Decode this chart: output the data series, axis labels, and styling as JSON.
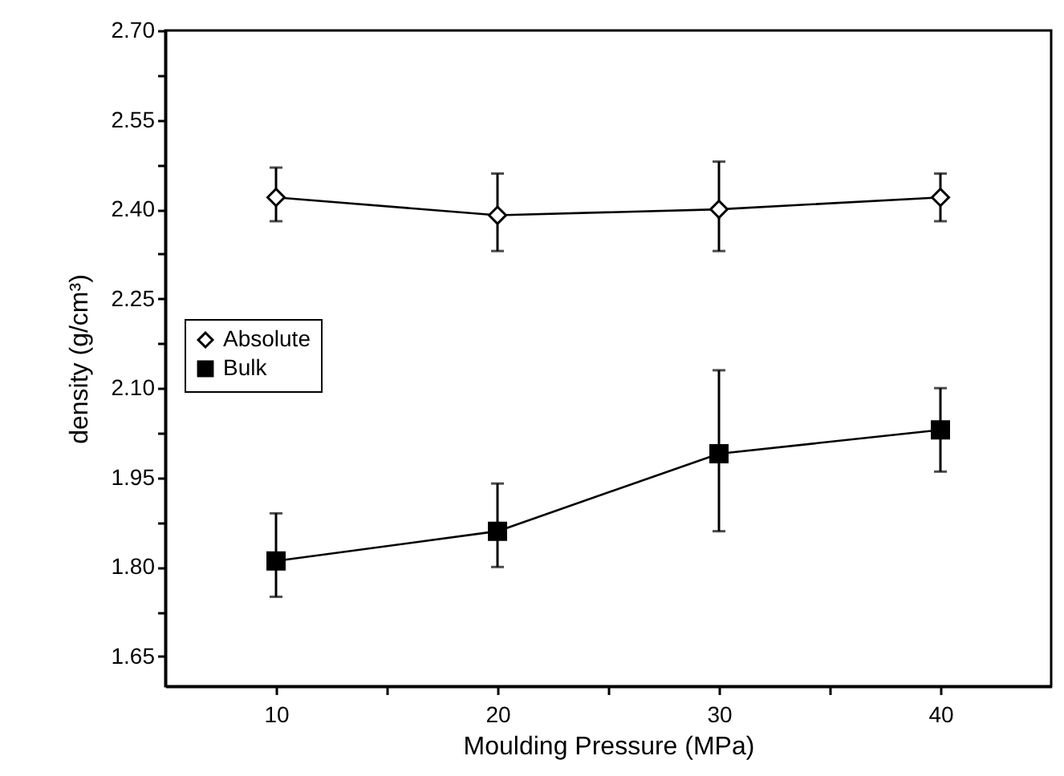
{
  "chart_data": {
    "type": "line",
    "xlabel": "Moulding Pressure (MPa)",
    "ylabel": "density (g/cm³)",
    "x": [
      10,
      20,
      30,
      40
    ],
    "series": [
      {
        "name": "Absolute",
        "color": "#000000",
        "marker": "diamond",
        "values": [
          2.42,
          2.39,
          2.4,
          2.42
        ],
        "errors": [
          [
            2.38,
            2.47
          ],
          [
            2.33,
            2.46
          ],
          [
            2.33,
            2.48
          ],
          [
            2.38,
            2.46
          ]
        ]
      },
      {
        "name": "Bulk",
        "color": "#000000",
        "marker": "square",
        "values": [
          1.81,
          1.86,
          1.99,
          2.03
        ],
        "errors": [
          [
            1.75,
            1.89
          ],
          [
            1.8,
            1.94
          ],
          [
            1.86,
            2.13
          ],
          [
            1.96,
            2.1
          ]
        ]
      }
    ],
    "xlim": [
      5,
      45
    ],
    "ylim": [
      1.6,
      2.7
    ],
    "xticks": [
      10,
      {
        "value": 15,
        "label": null
      },
      20,
      {
        "value": 25,
        "label": null
      },
      30,
      {
        "value": 35,
        "label": null
      },
      40
    ],
    "yticks": [
      1.65,
      {
        "value": 1.725,
        "label": null
      },
      {
        "value": 1.8,
        "label": "1.80"
      },
      {
        "value": 1.875,
        "label": null
      },
      1.95,
      {
        "value": 2.025,
        "label": null
      },
      {
        "value": 2.1,
        "label": "2.10"
      },
      {
        "value": 2.175,
        "label": null
      },
      2.25,
      {
        "value": 2.325,
        "label": null
      },
      {
        "value": 2.4,
        "label": "2.40"
      },
      {
        "value": 2.475,
        "label": null
      },
      2.55,
      {
        "value": 2.625,
        "label": null
      },
      {
        "value": 2.7,
        "label": "2.70"
      }
    ],
    "grid": false,
    "legend": "left",
    "line_style": "solid"
  }
}
